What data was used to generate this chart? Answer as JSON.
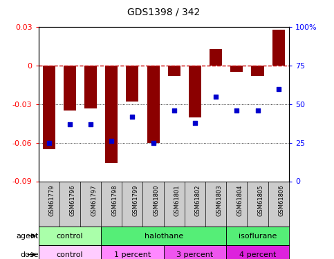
{
  "title": "GDS1398 / 342",
  "samples": [
    "GSM61779",
    "GSM61796",
    "GSM61797",
    "GSM61798",
    "GSM61799",
    "GSM61800",
    "GSM61801",
    "GSM61802",
    "GSM61803",
    "GSM61804",
    "GSM61805",
    "GSM61806"
  ],
  "log_ratio": [
    -0.065,
    -0.035,
    -0.033,
    -0.076,
    -0.028,
    -0.06,
    -0.008,
    -0.04,
    0.013,
    -0.005,
    -0.008,
    0.028
  ],
  "percentile": [
    25,
    37,
    37,
    26,
    42,
    25,
    46,
    38,
    55,
    46,
    46,
    60
  ],
  "ylim_left": [
    -0.09,
    0.03
  ],
  "ylim_right": [
    0,
    100
  ],
  "yticks_left": [
    -0.09,
    -0.06,
    -0.03,
    0.0,
    0.03
  ],
  "yticks_right": [
    0,
    25,
    50,
    75,
    100
  ],
  "bar_color": "#8B0000",
  "dot_color": "#0000CD",
  "hline_color": "#CC0000",
  "agent_groups": [
    {
      "label": "control",
      "start": 0,
      "end": 3,
      "color": "#AAFFAA"
    },
    {
      "label": "halothane",
      "start": 3,
      "end": 9,
      "color": "#55EE77"
    },
    {
      "label": "isoflurane",
      "start": 9,
      "end": 12,
      "color": "#55EE77"
    }
  ],
  "dose_groups": [
    {
      "label": "control",
      "start": 0,
      "end": 3,
      "color": "#FFCCFF"
    },
    {
      "label": "1 percent",
      "start": 3,
      "end": 6,
      "color": "#FF88FF"
    },
    {
      "label": "3 percent",
      "start": 6,
      "end": 9,
      "color": "#EE55EE"
    },
    {
      "label": "4 percent",
      "start": 9,
      "end": 12,
      "color": "#DD22DD"
    }
  ],
  "legend_bar_color": "#8B0000",
  "legend_dot_color": "#0000CD",
  "bg_color": "#FFFFFF",
  "tick_label_fontsize": 7,
  "title_fontsize": 10,
  "label_area_bg": "#CCCCCC",
  "bar_width": 0.6
}
